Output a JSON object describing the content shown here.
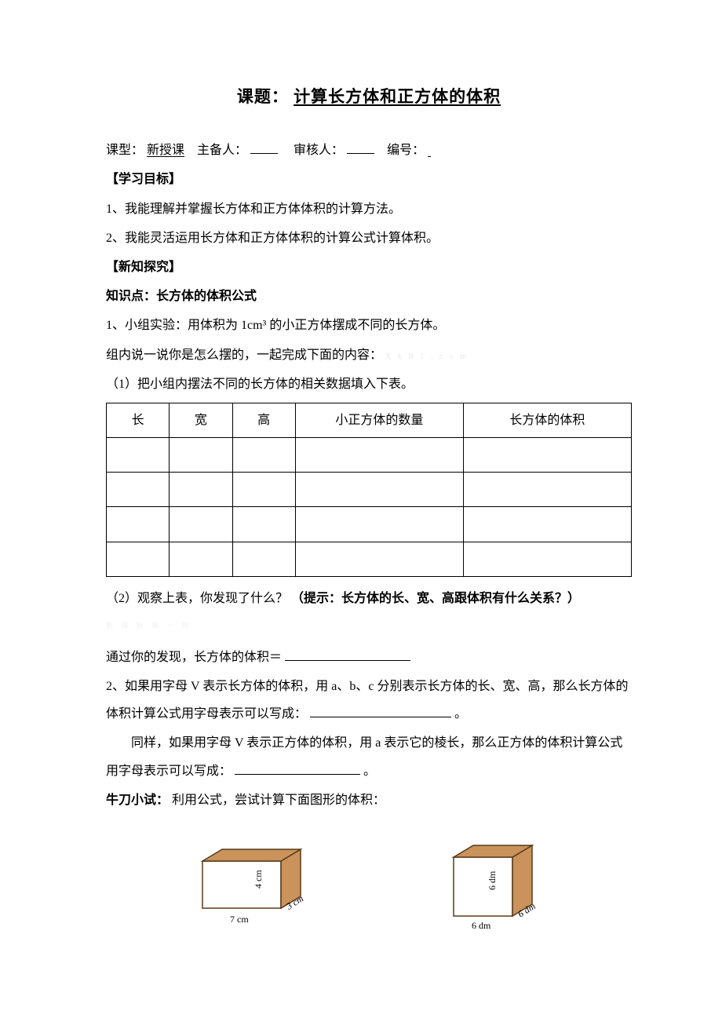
{
  "title_prefix": "课题：",
  "title_text": "计算长方体和正方体的体积",
  "meta": {
    "type_label": "课型：",
    "type_value": "新授课",
    "author_label": "主备人：",
    "reviewer_label": "审核人：",
    "number_label": "编号："
  },
  "goals": {
    "heading": "【学习目标】",
    "item1": "1、我能理解并掌握长方体和正方体体积的计算方法。",
    "item2": "2、我能灵活运用长方体和正方体体积的计算公式计算体积。"
  },
  "explore": {
    "heading": "【新知探究】",
    "kp_label": "知识点：长方体的体积公式",
    "line1": "1、小组实验：用体积为 1cm³ 的小正方体摆成不同的长方体。",
    "line2_pre": "组内说一说你是怎么摆的，一起完成下面的内容：",
    "line2_watermark": "X k  B  1 . c o m",
    "step1": "（1）把小组内摆法不同的长方体的相关数据填入下表。",
    "table": {
      "columns": [
        "长",
        "宽",
        "高",
        "小正方体的数量",
        "长方体的体积"
      ],
      "row_count": 4
    },
    "step2_pre": "（2）观察上表，你发现了什么？",
    "step2_hint": "（提示：长方体的长、宽、高跟体积有什么关系？）",
    "watermark2": "新  课    标    第    一   网",
    "finding": "通过你的发现，长方体的体积＝",
    "line_v1": "2、如果用字母 V 表示长方体的体积，用 a、b、c 分别表示长方体的长、宽、高，那么长方体的体积计算公式用字母表示可以写成：",
    "line_v2": "同样，如果用字母 V 表示正方体的体积，用 a 表示它的棱长，那么正方体的体积计算公式用字母表示可以写成：",
    "period": "。"
  },
  "practice": {
    "label": "牛刀小试：",
    "text": "利用公式，尝试计算下面图形的体积："
  },
  "cuboid": {
    "length": "7 cm",
    "width": "3 cm",
    "height": "4 cm",
    "face_fill": "#ffffff",
    "side_fill": "#c9935b",
    "stroke": "#5a3a1a"
  },
  "cube": {
    "edge_front": "6 dm",
    "edge_side": "6 dm",
    "edge_height": "6 dm",
    "face_fill": "#ffffff",
    "side_fill": "#c9935b",
    "stroke": "#5a3a1a"
  }
}
